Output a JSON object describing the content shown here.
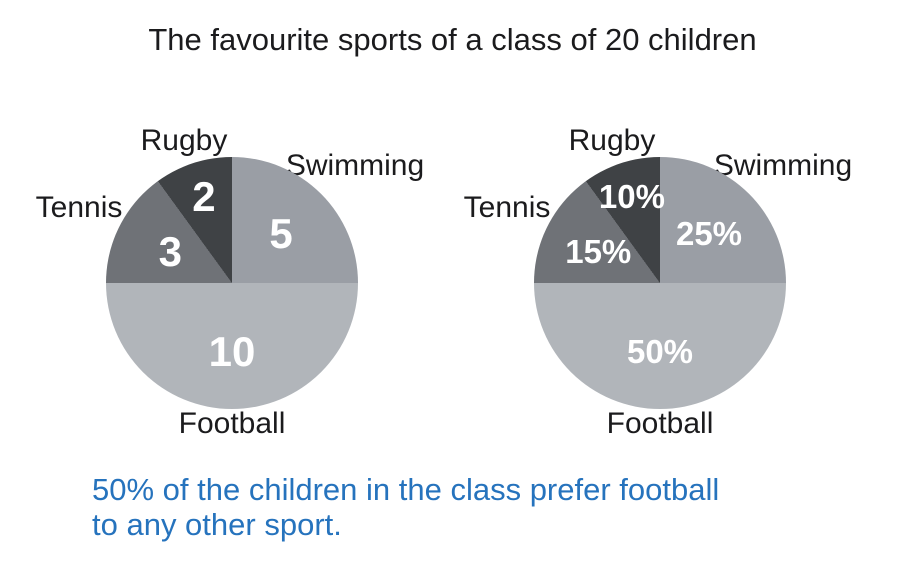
{
  "page": {
    "title": "The favourite sports of a class of 20 children",
    "background_color": "#ffffff",
    "title_color": "#1b1b1d"
  },
  "caption": {
    "line1": "50% of the children in the class prefer football",
    "line2": "to any other sport.",
    "color": "#2673bd"
  },
  "colors": {
    "swimming": "#9a9ea5",
    "football": "#b1b5ba",
    "tennis": "#6f7277",
    "rugby": "#3f4245",
    "value_text": "#ffffff",
    "label_text": "#1b1b1d"
  },
  "chart_data": [
    {
      "type": "pie",
      "title": "The favourite sports of a class of 20 children",
      "units": "children",
      "total": 20,
      "start_angle_deg": 0,
      "direction": "clockwise",
      "legend_position": "around-slices",
      "slices": [
        {
          "label": "Swimming",
          "value": 5,
          "display": "5",
          "color": "#9a9ea5"
        },
        {
          "label": "Football",
          "value": 10,
          "display": "10",
          "color": "#b1b5ba"
        },
        {
          "label": "Tennis",
          "value": 3,
          "display": "3",
          "color": "#6f7277"
        },
        {
          "label": "Rugby",
          "value": 2,
          "display": "2",
          "color": "#3f4245"
        }
      ]
    },
    {
      "type": "pie",
      "title": "The favourite sports of a class of 20 children",
      "units": "percent",
      "total": 100,
      "start_angle_deg": 0,
      "direction": "clockwise",
      "legend_position": "around-slices",
      "slices": [
        {
          "label": "Swimming",
          "value": 25,
          "display": "25%",
          "color": "#9a9ea5"
        },
        {
          "label": "Football",
          "value": 50,
          "display": "50%",
          "color": "#b1b5ba"
        },
        {
          "label": "Tennis",
          "value": 15,
          "display": "15%",
          "color": "#6f7277"
        },
        {
          "label": "Rugby",
          "value": 10,
          "display": "10%",
          "color": "#3f4245"
        }
      ]
    }
  ]
}
